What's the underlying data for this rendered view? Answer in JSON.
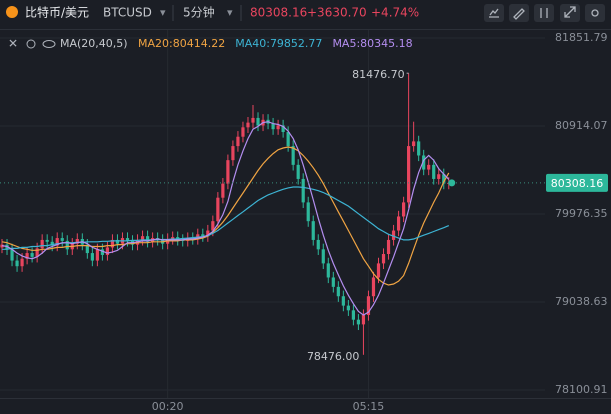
{
  "header": {
    "symbol_name": "比特币/美元",
    "symbol": "BTCUSD",
    "interval": "5分钟",
    "price": "80308.16",
    "change": "+3630.70",
    "change_pct": "+4.74%"
  },
  "chart_data": {
    "type": "candlestick",
    "indicator": "MA(20,40,5)",
    "up_color": "#e8455e",
    "down_color": "#2db89b",
    "candles": [
      [
        79620,
        79710,
        79560,
        79650
      ],
      [
        79650,
        79710,
        79540,
        79600
      ],
      [
        79600,
        79660,
        79420,
        79480
      ],
      [
        79480,
        79540,
        79360,
        79420
      ],
      [
        79420,
        79560,
        79360,
        79500
      ],
      [
        79500,
        79620,
        79440,
        79560
      ],
      [
        79560,
        79620,
        79460,
        79520
      ],
      [
        79520,
        79670,
        79460,
        79610
      ],
      [
        79610,
        79760,
        79550,
        79700
      ],
      [
        79700,
        79760,
        79620,
        79680
      ],
      [
        79680,
        79740,
        79580,
        79640
      ],
      [
        79640,
        79780,
        79580,
        79720
      ],
      [
        79720,
        79780,
        79630,
        79690
      ],
      [
        79690,
        79750,
        79540,
        79600
      ],
      [
        79600,
        79720,
        79540,
        79660
      ],
      [
        79660,
        79770,
        79600,
        79710
      ],
      [
        79710,
        79770,
        79590,
        79650
      ],
      [
        79650,
        79710,
        79500,
        79560
      ],
      [
        79560,
        79620,
        79420,
        79480
      ],
      [
        79480,
        79660,
        79420,
        79600
      ],
      [
        79600,
        79660,
        79480,
        79540
      ],
      [
        79540,
        79680,
        79480,
        79620
      ],
      [
        79620,
        79760,
        79560,
        79700
      ],
      [
        79700,
        79760,
        79600,
        79660
      ],
      [
        79660,
        79780,
        79600,
        79720
      ],
      [
        79720,
        79780,
        79630,
        79690
      ],
      [
        79690,
        79750,
        79590,
        79650
      ],
      [
        79650,
        79760,
        79590,
        79700
      ],
      [
        79700,
        79800,
        79640,
        79740
      ],
      [
        79740,
        79800,
        79620,
        79680
      ],
      [
        79680,
        79780,
        79620,
        79720
      ],
      [
        79720,
        79780,
        79640,
        79700
      ],
      [
        79700,
        79760,
        79600,
        79660
      ],
      [
        79660,
        79770,
        79600,
        79710
      ],
      [
        79710,
        79790,
        79650,
        79730
      ],
      [
        79730,
        79790,
        79640,
        79700
      ],
      [
        79700,
        79760,
        79630,
        79690
      ],
      [
        79690,
        79780,
        79630,
        79720
      ],
      [
        79720,
        79780,
        79650,
        79710
      ],
      [
        79710,
        79820,
        79650,
        79760
      ],
      [
        79760,
        79820,
        79680,
        79740
      ],
      [
        79740,
        79860,
        79680,
        79800
      ],
      [
        79800,
        79960,
        79740,
        79900
      ],
      [
        79900,
        80210,
        79840,
        80150
      ],
      [
        80150,
        80360,
        80090,
        80300
      ],
      [
        80300,
        80610,
        80240,
        80550
      ],
      [
        80550,
        80760,
        80490,
        80700
      ],
      [
        80700,
        80860,
        80640,
        80800
      ],
      [
        80800,
        80960,
        80740,
        80900
      ],
      [
        80900,
        81010,
        80840,
        80950
      ],
      [
        80950,
        81138,
        80890,
        81000
      ],
      [
        81000,
        81060,
        80860,
        80920
      ],
      [
        80920,
        81040,
        80860,
        80980
      ],
      [
        80980,
        81040,
        80880,
        80940
      ],
      [
        80940,
        81000,
        80820,
        80880
      ],
      [
        80880,
        80980,
        80820,
        80920
      ],
      [
        80920,
        80980,
        80790,
        80850
      ],
      [
        80850,
        80910,
        80640,
        80700
      ],
      [
        80700,
        80760,
        80440,
        80500
      ],
      [
        80500,
        80560,
        80290,
        80350
      ],
      [
        80350,
        80410,
        80040,
        80100
      ],
      [
        80100,
        80160,
        79840,
        79900
      ],
      [
        79900,
        79960,
        79640,
        79700
      ],
      [
        79700,
        79760,
        79540,
        79600
      ],
      [
        79600,
        79660,
        79390,
        79450
      ],
      [
        79450,
        79510,
        79240,
        79300
      ],
      [
        79300,
        79360,
        79140,
        79200
      ],
      [
        79200,
        79260,
        79040,
        79100
      ],
      [
        79100,
        79160,
        78940,
        79000
      ],
      [
        79000,
        79060,
        78890,
        78950
      ],
      [
        78950,
        79010,
        78790,
        78850
      ],
      [
        78850,
        78910,
        78740,
        78800
      ],
      [
        78800,
        78960,
        78476,
        78900
      ],
      [
        78900,
        79160,
        78840,
        79100
      ],
      [
        79100,
        79360,
        79040,
        79300
      ],
      [
        79300,
        79510,
        79240,
        79450
      ],
      [
        79450,
        79610,
        79390,
        79550
      ],
      [
        79550,
        79760,
        79490,
        79700
      ],
      [
        79700,
        79860,
        79640,
        79800
      ],
      [
        79800,
        80010,
        79740,
        79950
      ],
      [
        79950,
        80160,
        79890,
        80100
      ],
      [
        80100,
        81476.7,
        80040,
        80700
      ],
      [
        80700,
        80960,
        80640,
        80750
      ],
      [
        80750,
        80810,
        80540,
        80600
      ],
      [
        80600,
        80660,
        80390,
        80450
      ],
      [
        80450,
        80560,
        80390,
        80500
      ],
      [
        80500,
        80560,
        80290,
        80350
      ],
      [
        80350,
        80460,
        80290,
        80400
      ],
      [
        80400,
        80460,
        80240,
        80300
      ],
      [
        80300,
        80370,
        80240,
        80308.16
      ]
    ],
    "categories": [
      null,
      null,
      null,
      null,
      null,
      null,
      null,
      null,
      null,
      null,
      null,
      null,
      null,
      null,
      null,
      null,
      null,
      null,
      null,
      null,
      null,
      null,
      null,
      null,
      null,
      null,
      null,
      null,
      null,
      null,
      null,
      null,
      null,
      "00:20",
      null,
      null,
      null,
      null,
      null,
      null,
      null,
      null,
      null,
      null,
      null,
      null,
      null,
      null,
      null,
      null,
      null,
      null,
      null,
      null,
      null,
      null,
      null,
      null,
      null,
      null,
      null,
      null,
      null,
      null,
      null,
      null,
      null,
      null,
      null,
      null,
      null,
      null,
      null,
      "05:15",
      null,
      null,
      null,
      null,
      null,
      null,
      null,
      null,
      null,
      null,
      null,
      null,
      null,
      null,
      null,
      null
    ],
    "series": [
      {
        "name": "MA20:80414.22",
        "color": "#f0a443",
        "values": [
          79680,
          79670,
          79650,
          79630,
          79610,
          79600,
          79590,
          79590,
          79600,
          79600,
          79610,
          79620,
          79620,
          79630,
          79630,
          79640,
          79640,
          79640,
          79630,
          79630,
          79630,
          79640,
          79640,
          79650,
          79650,
          79660,
          79660,
          79670,
          79670,
          79670,
          79680,
          79680,
          79680,
          79690,
          79690,
          79690,
          79700,
          79700,
          79700,
          79710,
          79720,
          79740,
          79780,
          79830,
          79890,
          79960,
          80040,
          80120,
          80200,
          80280,
          80360,
          80440,
          80510,
          80570,
          80620,
          80660,
          80680,
          80690,
          80680,
          80650,
          80600,
          80540,
          80470,
          80390,
          80300,
          80200,
          80100,
          80000,
          79900,
          79800,
          79700,
          79600,
          79500,
          79420,
          79340,
          79280,
          79240,
          79220,
          79230,
          79260,
          79320,
          79450,
          79600,
          79750,
          79880,
          79990,
          80100,
          80200,
          80320,
          80414.22
        ]
      },
      {
        "name": "MA40:79852.77",
        "color": "#3db4d4",
        "values": [
          79600,
          79600,
          79610,
          79610,
          79620,
          79620,
          79630,
          79630,
          79640,
          79640,
          79650,
          79660,
          79665,
          79670,
          79670,
          79675,
          79675,
          79680,
          79680,
          79680,
          79685,
          79685,
          79690,
          79690,
          79690,
          79690,
          79695,
          79695,
          79700,
          79700,
          79700,
          79700,
          79705,
          79705,
          79710,
          79710,
          79715,
          79720,
          79725,
          79730,
          79735,
          79745,
          79770,
          79800,
          79840,
          79880,
          79920,
          79960,
          80000,
          80040,
          80080,
          80120,
          80150,
          80180,
          80200,
          80220,
          80240,
          80255,
          80264,
          80264,
          80260,
          80250,
          80240,
          80225,
          80205,
          80180,
          80150,
          80120,
          80090,
          80060,
          80020,
          79980,
          79940,
          79900,
          79860,
          79820,
          79790,
          79760,
          79740,
          79720,
          79700,
          79700,
          79710,
          79730,
          79750,
          79770,
          79790,
          79810,
          79830,
          79852.77
        ]
      },
      {
        "name": "MA5:80345.18",
        "color": "#b48ef0",
        "values": [
          79640,
          79630,
          79600,
          79560,
          79530,
          79510,
          79500,
          79520,
          79560,
          79610,
          79630,
          79650,
          79670,
          79670,
          79660,
          79670,
          79680,
          79660,
          79620,
          79600,
          79580,
          79560,
          79570,
          79590,
          79630,
          79670,
          79670,
          79680,
          79690,
          79690,
          79700,
          79710,
          79700,
          79700,
          79700,
          79700,
          79700,
          79710,
          79710,
          79720,
          79730,
          79750,
          79790,
          79870,
          79970,
          80110,
          80320,
          80500,
          80650,
          80780,
          80880,
          80910,
          80950,
          80960,
          80940,
          80930,
          80910,
          80860,
          80780,
          80660,
          80500,
          80320,
          80130,
          79930,
          79750,
          79590,
          79450,
          79330,
          79210,
          79110,
          79020,
          78940,
          78900,
          78930,
          79010,
          79110,
          79240,
          79380,
          79520,
          79670,
          79820,
          80020,
          80240,
          80420,
          80550,
          80600,
          80550,
          80460,
          80400,
          80345.18
        ]
      }
    ],
    "high_label": "81476.70",
    "low_label": "78476.00",
    "last_price": 80308.16,
    "last_price_label": "80308.16",
    "ylim": [
      78100.91,
      81851.79
    ],
    "yticks": [
      81851.79,
      80914.07,
      79976.35,
      79038.63,
      78100.91
    ]
  }
}
